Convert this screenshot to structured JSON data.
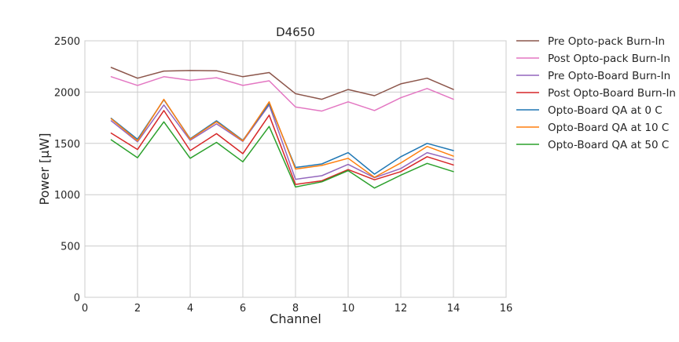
{
  "chart_data": {
    "type": "line",
    "title": "D4650",
    "xlabel": "Channel",
    "ylabel": "Power [μW]",
    "xlim": [
      0,
      16
    ],
    "ylim": [
      0,
      2500
    ],
    "xticks": [
      0,
      2,
      4,
      6,
      8,
      10,
      12,
      14,
      16
    ],
    "yticks": [
      0,
      500,
      1000,
      1500,
      2000,
      2500
    ],
    "grid": true,
    "legend_position": "outside-right",
    "x": [
      1,
      2,
      3,
      4,
      5,
      6,
      7,
      8,
      9,
      10,
      11,
      12,
      13,
      14
    ],
    "series": [
      {
        "name": "Pre Opto-pack Burn-In",
        "color": "#8c564b",
        "values": [
          2240,
          2135,
          2205,
          2210,
          2208,
          2150,
          2190,
          1985,
          1930,
          2025,
          1965,
          2080,
          2135,
          2025
        ]
      },
      {
        "name": "Post Opto-pack Burn-In",
        "color": "#e377c2",
        "values": [
          2150,
          2065,
          2150,
          2115,
          2140,
          2065,
          2110,
          1855,
          1815,
          1905,
          1820,
          1945,
          2035,
          1930
        ]
      },
      {
        "name": "Pre Opto-Board Burn-In",
        "color": "#9467bd",
        "values": [
          1720,
          1515,
          1875,
          1530,
          1690,
          1520,
          1875,
          1150,
          1185,
          1295,
          1165,
          1255,
          1410,
          1340
        ]
      },
      {
        "name": "Post Opto-Board Burn-In",
        "color": "#d62728",
        "values": [
          1600,
          1440,
          1820,
          1430,
          1595,
          1400,
          1775,
          1100,
          1135,
          1245,
          1145,
          1225,
          1370,
          1290
        ]
      },
      {
        "name": "Opto-Board QA at 0 C",
        "color": "#1f77b4",
        "values": [
          1745,
          1540,
          1925,
          1545,
          1720,
          1530,
          1890,
          1265,
          1300,
          1410,
          1200,
          1370,
          1500,
          1430
        ]
      },
      {
        "name": "Opto-Board QA at 10 C",
        "color": "#ff7f0e",
        "values": [
          1740,
          1525,
          1930,
          1540,
          1710,
          1525,
          1905,
          1250,
          1285,
          1355,
          1170,
          1310,
          1470,
          1375
        ]
      },
      {
        "name": "Opto-Board QA at 50 C",
        "color": "#2ca02c",
        "values": [
          1535,
          1360,
          1710,
          1355,
          1510,
          1320,
          1665,
          1075,
          1125,
          1235,
          1065,
          1190,
          1305,
          1225
        ]
      }
    ]
  }
}
